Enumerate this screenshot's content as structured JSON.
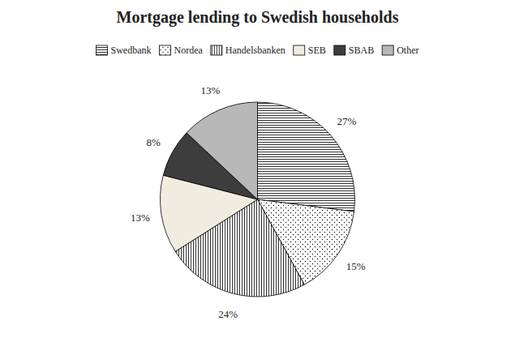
{
  "chart_data": {
    "type": "pie",
    "title": "Mortgage lending to Swedish households",
    "categories": [
      "Swedbank",
      "Nordea",
      "Handelsbanken",
      "SEB",
      "SBAB",
      "Other"
    ],
    "values": [
      27,
      15,
      24,
      13,
      8,
      13
    ],
    "value_labels": [
      "27%",
      "15%",
      "24%",
      "13%",
      "8%",
      "13%"
    ],
    "data_labels": true,
    "colors": [
      "white",
      "white",
      "white",
      "#f0ede0",
      "#3d3d3d",
      "#b8b8b8"
    ],
    "legend": "top"
  }
}
